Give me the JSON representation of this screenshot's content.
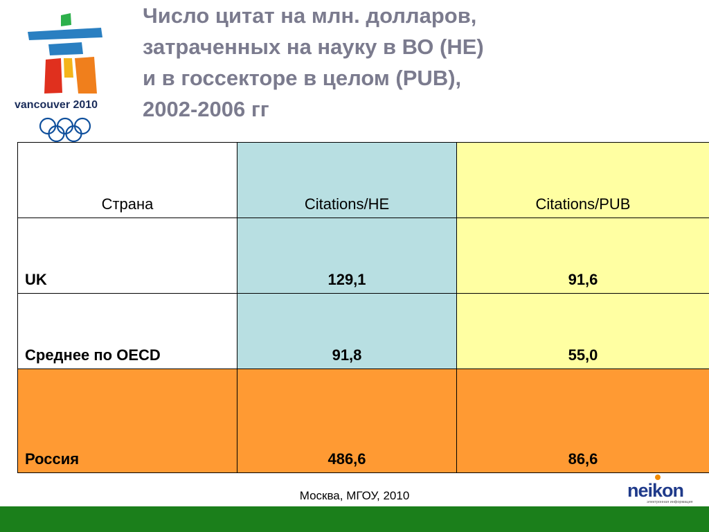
{
  "title": {
    "line1": "Число цитат на млн. долларов,",
    "line2": "затраченных на науку в ВО (HE)",
    "line3": "и в госсекторе в  целом (PUB),",
    "line4": "2002-2006 гг"
  },
  "logo": {
    "text": "vancouver 2010",
    "icon": "inukshuk-olympic-rings-logo"
  },
  "table": {
    "headers": [
      "Страна",
      "Citations/HE",
      "Citations/PUB"
    ],
    "rows": [
      {
        "country": "UK",
        "he": "129,1",
        "pub": "91,6"
      },
      {
        "country": "Среднее по OECD",
        "he": "91,8",
        "pub": "55,0"
      },
      {
        "country": "Россия",
        "he": "486,6",
        "pub": "86,6"
      }
    ]
  },
  "footer": {
    "text": "Москва, МГОУ, 2010"
  },
  "brand": {
    "name": "neikon",
    "tagline": "электронная информация",
    "colors": {
      "primary": "#1f3a8a",
      "accent": "#f08a00"
    }
  },
  "colors": {
    "title": "#7b7b8e",
    "he_column": "#b8dfe2",
    "pub_column": "#ffffa2",
    "russia_row": "#ff9a33",
    "bottom_bar": "#1b7f1b"
  }
}
